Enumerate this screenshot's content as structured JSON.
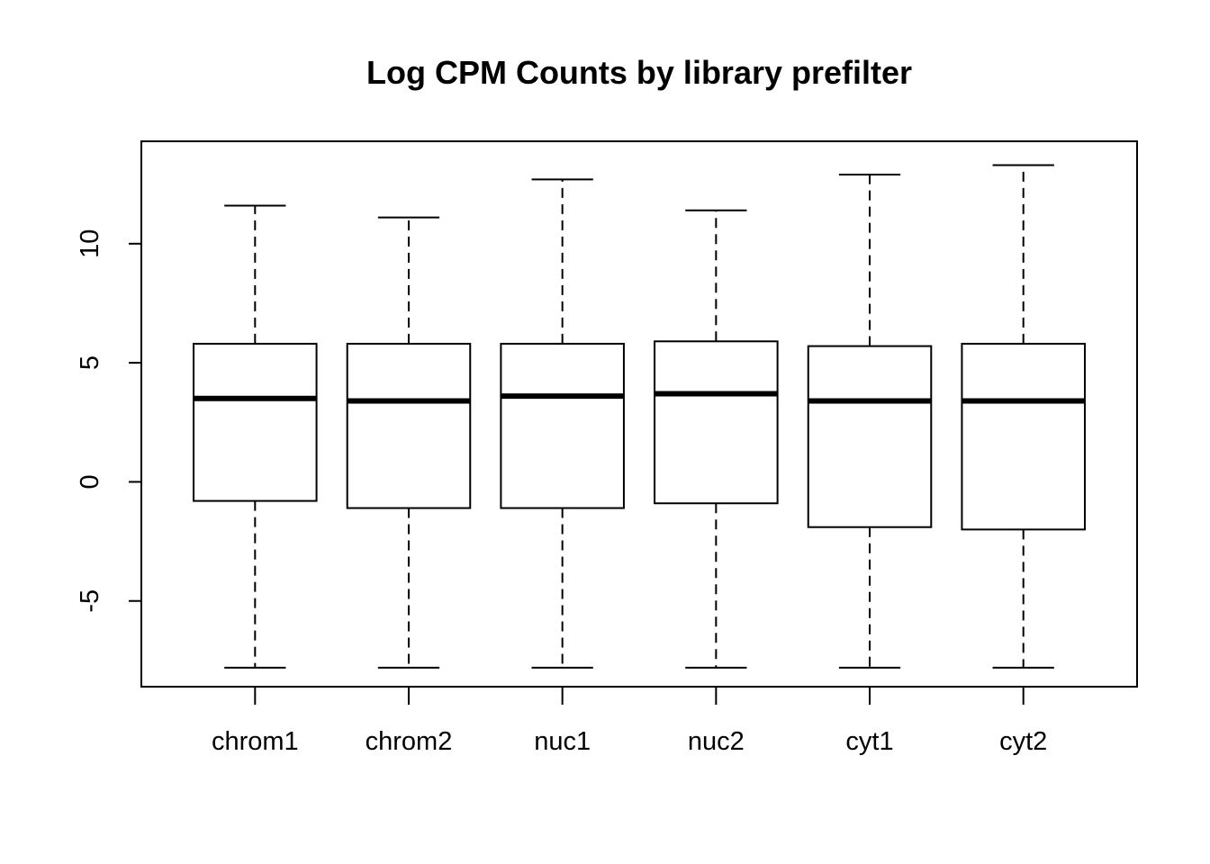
{
  "chart_data": {
    "type": "boxplot",
    "title": "Log CPM Counts by library prefilter",
    "xlabel": "",
    "ylabel": "",
    "ylim": [
      -8.6,
      14.3
    ],
    "yticks": [
      -5,
      0,
      5,
      10
    ],
    "ytick_labels": [
      "-5",
      "0",
      "5",
      "10"
    ],
    "grid": false,
    "categories": [
      "chrom1",
      "chrom2",
      "nuc1",
      "nuc2",
      "cyt1",
      "cyt2"
    ],
    "boxes": [
      {
        "name": "chrom1",
        "min": -7.8,
        "q1": -0.8,
        "median": 3.5,
        "q3": 5.8,
        "max": 11.6
      },
      {
        "name": "chrom2",
        "min": -7.8,
        "q1": -1.1,
        "median": 3.4,
        "q3": 5.8,
        "max": 11.1
      },
      {
        "name": "nuc1",
        "min": -7.8,
        "q1": -1.1,
        "median": 3.6,
        "q3": 5.8,
        "max": 12.7
      },
      {
        "name": "nuc2",
        "min": -7.8,
        "q1": -0.9,
        "median": 3.7,
        "q3": 5.9,
        "max": 11.4
      },
      {
        "name": "cyt1",
        "min": -7.8,
        "q1": -1.9,
        "median": 3.4,
        "q3": 5.7,
        "max": 12.9
      },
      {
        "name": "cyt2",
        "min": -7.8,
        "q1": -2.0,
        "median": 3.4,
        "q3": 5.8,
        "max": 13.3
      }
    ]
  }
}
